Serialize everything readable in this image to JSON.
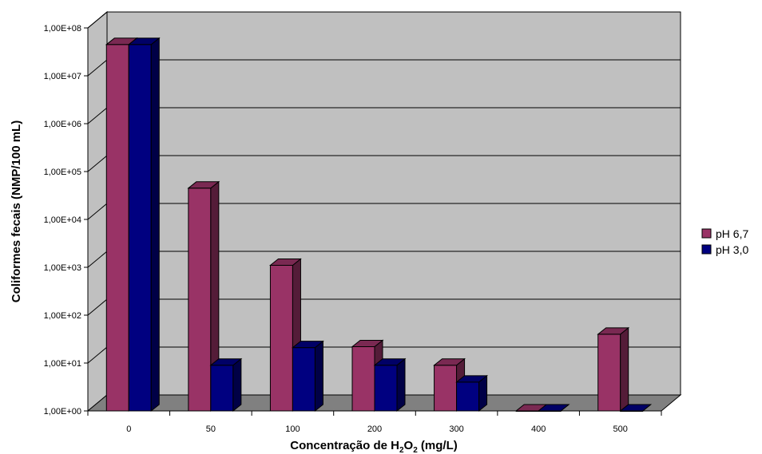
{
  "chart_data": {
    "type": "bar",
    "style": "3d-clustered-column",
    "xlabel": "Concentração de H2O2 (mg/L)",
    "xlabel_parts": {
      "prefix": "Concentração de H",
      "sub1": "2",
      "mid": "O",
      "sub2": "2",
      "suffix": " (mg/L)"
    },
    "ylabel": "Coliformes fecais (NMP/100 mL)",
    "yscale": "log",
    "ylim": [
      1,
      100000000
    ],
    "yticks": [
      "1,00E+00",
      "1,00E+01",
      "1,00E+02",
      "1,00E+03",
      "1,00E+04",
      "1,00E+05",
      "1,00E+06",
      "1,00E+07",
      "1,00E+08"
    ],
    "categories": [
      "0",
      "50",
      "100",
      "200",
      "300",
      "400",
      "500"
    ],
    "series": [
      {
        "name": "pH 6,7",
        "color": "#993366",
        "values": [
          45000000,
          45000,
          1100,
          22,
          9,
          1,
          40
        ]
      },
      {
        "name": "pH 3,0",
        "color": "#000080",
        "values": [
          45000000,
          9,
          21,
          9,
          4,
          1,
          1
        ]
      }
    ],
    "grid": true,
    "legend": "right",
    "wall_color": "#c0c0c0",
    "floor_color": "#808080"
  }
}
